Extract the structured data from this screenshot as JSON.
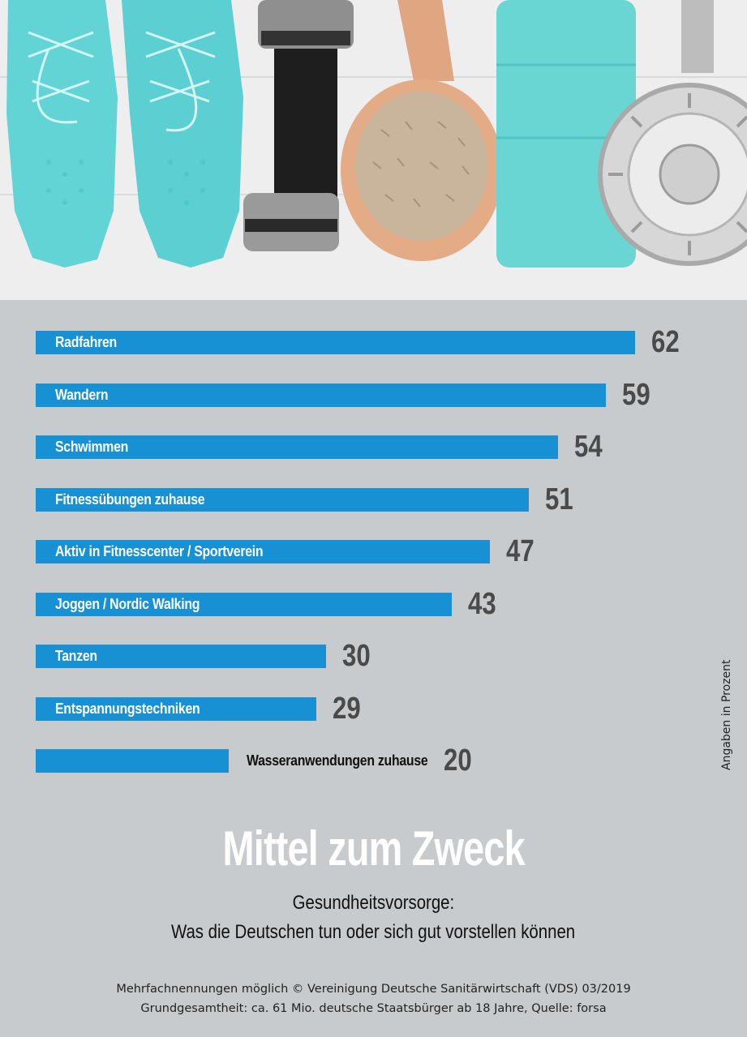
{
  "chart_data": {
    "type": "bar",
    "orientation": "horizontal",
    "categories": [
      "Radfahren",
      "Wandern",
      "Schwimmen",
      "Fitnessübungen zuhause",
      "Aktiv in Fitnesscenter / Sportverein",
      "Joggen / Nordic Walking",
      "Tanzen",
      "Entspannungstechniken",
      "Wasseranwendungen zuhause"
    ],
    "values": [
      62,
      59,
      54,
      51,
      47,
      43,
      30,
      29,
      20
    ],
    "title": "Mittel zum Zweck",
    "subtitle_line1": "Gesundheitsvorsorge:",
    "subtitle_line2": "Was die Deutschen tun oder sich gut vorstellen können",
    "unit_note": "Angaben in Prozent",
    "bar_color": "#1791d3",
    "value_color": "#4a4a4a",
    "background_color": "#c8cbcd",
    "grid": false,
    "legend": "none"
  },
  "footer": {
    "line1": "Mehrfachnennungen möglich   © Vereinigung Deutsche Sanitärwirtschaft (VDS)  03/2019",
    "line2": "Grundgesamtheit: ca. 61 Mio. deutsche Staatsbürger ab 18 Jahre, Quelle: forsa"
  },
  "photo": {
    "items": [
      "sneakers",
      "dumbbell",
      "bath-brush",
      "towel",
      "shower-head"
    ],
    "accent_color": "#62d4d6"
  }
}
